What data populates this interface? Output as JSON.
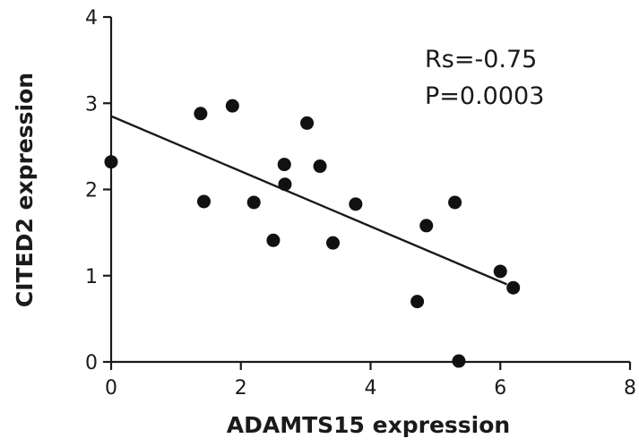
{
  "chart_data": {
    "type": "scatter",
    "xlabel": "ADAMTS15 expression",
    "ylabel": "CITED2 expression",
    "xlim": [
      0,
      8
    ],
    "ylim": [
      0,
      4
    ],
    "xticks": [
      "0",
      "2",
      "4",
      "6",
      "8"
    ],
    "yticks": [
      "0",
      "1",
      "2",
      "3",
      "4"
    ],
    "annotations": [
      "Rs=-0.75",
      "P=0.0003"
    ],
    "grid": false,
    "points": [
      {
        "x": 0.0,
        "y": 2.32
      },
      {
        "x": 1.38,
        "y": 2.88
      },
      {
        "x": 1.43,
        "y": 1.86
      },
      {
        "x": 1.87,
        "y": 2.97
      },
      {
        "x": 2.2,
        "y": 1.85
      },
      {
        "x": 2.5,
        "y": 1.41
      },
      {
        "x": 2.67,
        "y": 2.29
      },
      {
        "x": 2.68,
        "y": 2.06
      },
      {
        "x": 3.02,
        "y": 2.77
      },
      {
        "x": 3.22,
        "y": 2.27
      },
      {
        "x": 3.42,
        "y": 1.38
      },
      {
        "x": 3.77,
        "y": 1.83
      },
      {
        "x": 4.72,
        "y": 0.7
      },
      {
        "x": 4.86,
        "y": 1.58
      },
      {
        "x": 5.3,
        "y": 1.85
      },
      {
        "x": 5.36,
        "y": 0.01
      },
      {
        "x": 6.0,
        "y": 1.05
      },
      {
        "x": 6.2,
        "y": 0.86
      }
    ],
    "fit_line": {
      "x": [
        0,
        6.1
      ],
      "y": [
        2.85,
        0.9
      ]
    }
  }
}
